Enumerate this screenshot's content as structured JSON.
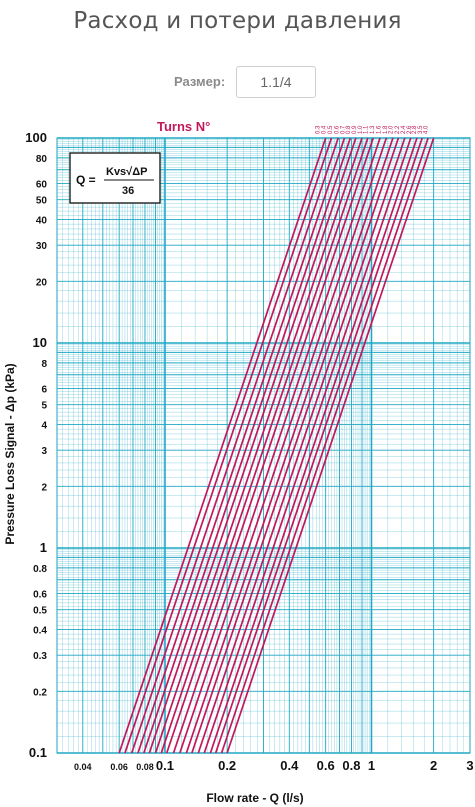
{
  "page": {
    "title": "Расход и потери давления",
    "size_label": "Размер:",
    "size_value": "1.1/4"
  },
  "chart_data": {
    "type": "line",
    "xscale": "log",
    "yscale": "log",
    "xlim": [
      0.03,
      3
    ],
    "ylim": [
      0.1,
      100
    ],
    "grid": true,
    "colors": {
      "grid": "#1fa7c4",
      "series": "#c2185b"
    },
    "xlabel": "Flow rate - Q (l/s)",
    "ylabel": "Pressure Loss Signal  - Δp (kPa)",
    "legend_title": "Turns N°",
    "formula": {
      "lhs": "Q =",
      "numerator": "Kvs√ΔP",
      "denominator": "36"
    },
    "x_ticks": [
      {
        "value": 0.04,
        "label": "0.04",
        "major": false
      },
      {
        "value": 0.06,
        "label": "0.06",
        "major": false
      },
      {
        "value": 0.08,
        "label": "0.08",
        "major": false
      },
      {
        "value": 0.1,
        "label": "0.1",
        "major": true
      },
      {
        "value": 0.2,
        "label": "0.2",
        "major": true
      },
      {
        "value": 0.4,
        "label": "0.4",
        "major": true
      },
      {
        "value": 0.6,
        "label": "0.6",
        "major": true
      },
      {
        "value": 0.8,
        "label": "0.8",
        "major": true
      },
      {
        "value": 1,
        "label": "1",
        "major": true
      },
      {
        "value": 2,
        "label": "2",
        "major": true
      },
      {
        "value": 3,
        "label": "3",
        "major": true
      }
    ],
    "y_ticks": [
      {
        "value": 0.1,
        "label": "0.1",
        "major": true
      },
      {
        "value": 0.2,
        "label": "0.2",
        "major": false
      },
      {
        "value": 0.3,
        "label": "0.3",
        "major": false
      },
      {
        "value": 0.4,
        "label": "0.4",
        "major": false
      },
      {
        "value": 0.5,
        "label": "0.5",
        "major": false
      },
      {
        "value": 0.6,
        "label": "0.6",
        "major": false
      },
      {
        "value": 0.8,
        "label": "0.8",
        "major": false
      },
      {
        "value": 1,
        "label": "1",
        "major": true
      },
      {
        "value": 2,
        "label": "2",
        "major": false
      },
      {
        "value": 3,
        "label": "3",
        "major": false
      },
      {
        "value": 4,
        "label": "4",
        "major": false
      },
      {
        "value": 5,
        "label": "5",
        "major": false
      },
      {
        "value": 6,
        "label": "6",
        "major": false
      },
      {
        "value": 8,
        "label": "8",
        "major": false
      },
      {
        "value": 10,
        "label": "10",
        "major": true
      },
      {
        "value": 20,
        "label": "20",
        "major": false
      },
      {
        "value": 30,
        "label": "30",
        "major": false
      },
      {
        "value": 40,
        "label": "40",
        "major": false
      },
      {
        "value": 50,
        "label": "50",
        "major": false
      },
      {
        "value": 60,
        "label": "60",
        "major": false
      },
      {
        "value": 80,
        "label": "80",
        "major": false
      },
      {
        "value": 100,
        "label": "100",
        "major": true
      }
    ],
    "series": [
      {
        "name": "0.3",
        "points": [
          [
            0.06,
            0.1
          ],
          [
            0.6,
            100
          ]
        ]
      },
      {
        "name": "0.4",
        "points": [
          [
            0.064,
            0.1
          ],
          [
            0.64,
            100
          ]
        ]
      },
      {
        "name": "0.5",
        "points": [
          [
            0.069,
            0.1
          ],
          [
            0.69,
            100
          ]
        ]
      },
      {
        "name": "0.6",
        "points": [
          [
            0.074,
            0.1
          ],
          [
            0.74,
            100
          ]
        ]
      },
      {
        "name": "0.7",
        "points": [
          [
            0.079,
            0.1
          ],
          [
            0.79,
            100
          ]
        ]
      },
      {
        "name": "0.8",
        "points": [
          [
            0.084,
            0.1
          ],
          [
            0.84,
            100
          ]
        ]
      },
      {
        "name": "0.9",
        "points": [
          [
            0.09,
            0.1
          ],
          [
            0.9,
            100
          ]
        ]
      },
      {
        "name": "1.0",
        "points": [
          [
            0.096,
            0.1
          ],
          [
            0.96,
            100
          ]
        ]
      },
      {
        "name": "1.1",
        "points": [
          [
            0.102,
            0.1
          ],
          [
            1.02,
            100
          ]
        ]
      },
      {
        "name": "1.3",
        "points": [
          [
            0.11,
            0.1
          ],
          [
            1.1,
            100
          ]
        ]
      },
      {
        "name": "1.6",
        "points": [
          [
            0.118,
            0.1
          ],
          [
            1.18,
            100
          ]
        ]
      },
      {
        "name": "1.8",
        "points": [
          [
            0.127,
            0.1
          ],
          [
            1.27,
            100
          ]
        ]
      },
      {
        "name": "2.0",
        "points": [
          [
            0.135,
            0.1
          ],
          [
            1.35,
            100
          ]
        ]
      },
      {
        "name": "2.2",
        "points": [
          [
            0.145,
            0.1
          ],
          [
            1.45,
            100
          ]
        ]
      },
      {
        "name": "2.4",
        "points": [
          [
            0.155,
            0.1
          ],
          [
            1.55,
            100
          ]
        ]
      },
      {
        "name": "2.6",
        "points": [
          [
            0.166,
            0.1
          ],
          [
            1.66,
            100
          ]
        ]
      },
      {
        "name": "2.8",
        "points": [
          [
            0.176,
            0.1
          ],
          [
            1.76,
            100
          ]
        ]
      },
      {
        "name": "3.5",
        "points": [
          [
            0.188,
            0.1
          ],
          [
            1.88,
            100
          ]
        ]
      },
      {
        "name": "4.0",
        "points": [
          [
            0.2,
            0.1
          ],
          [
            2.0,
            100
          ]
        ]
      }
    ]
  }
}
